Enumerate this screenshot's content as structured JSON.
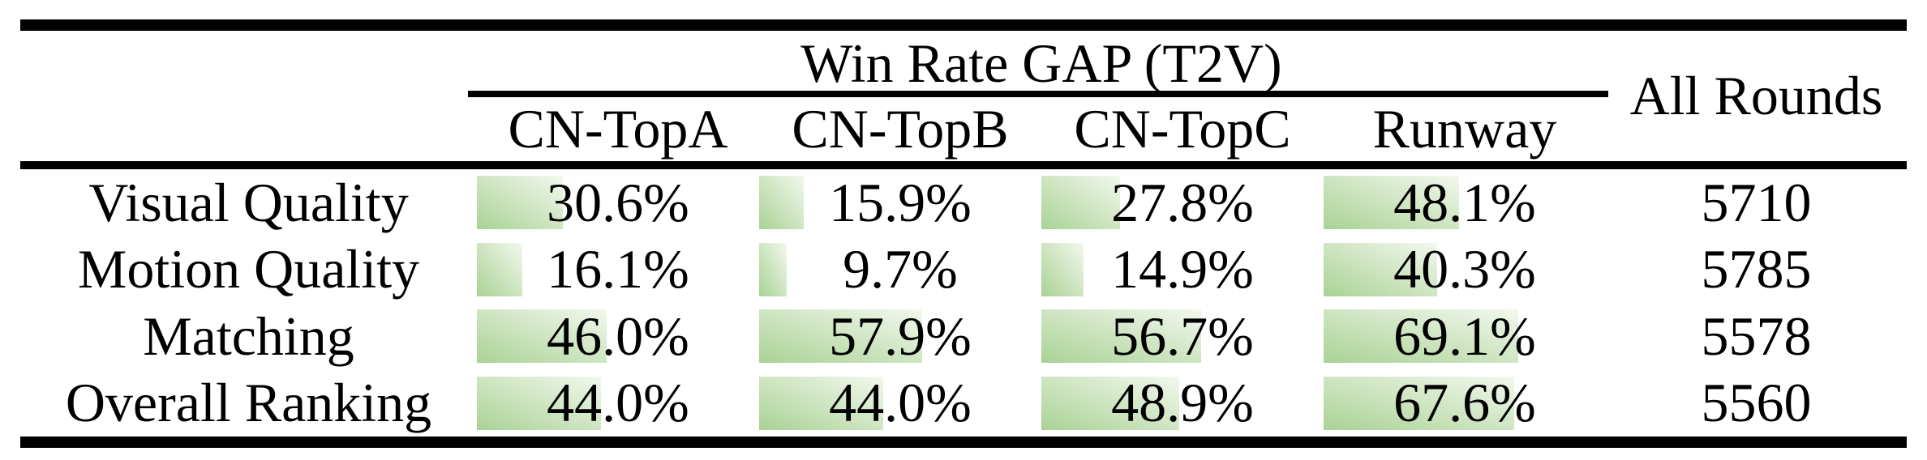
{
  "meta": {
    "background": "#ffffff",
    "text_color": "#000000",
    "rule_color": "#000000"
  },
  "table": {
    "group_header": "Win Rate GAP (T2V)",
    "all_rounds_header": "All Rounds",
    "bar_color_start": "#a9d295",
    "bar_color_end": "#f3f8ee",
    "columns": [
      "CN-TopA",
      "CN-TopB",
      "CN-TopC",
      "Runway"
    ],
    "rows": [
      {
        "label": "Visual Quality",
        "cells": [
          {
            "pct": 30.6,
            "display": "30.6%"
          },
          {
            "pct": 15.9,
            "display": "15.9%"
          },
          {
            "pct": 27.8,
            "display": "27.8%"
          },
          {
            "pct": 48.1,
            "display": "48.1%"
          }
        ],
        "all_rounds": "5710"
      },
      {
        "label": "Motion Quality",
        "cells": [
          {
            "pct": 16.1,
            "display": "16.1%"
          },
          {
            "pct": 9.7,
            "display": "9.7%"
          },
          {
            "pct": 14.9,
            "display": "14.9%"
          },
          {
            "pct": 40.3,
            "display": "40.3%"
          }
        ],
        "all_rounds": "5785"
      },
      {
        "label": "Matching",
        "cells": [
          {
            "pct": 46.0,
            "display": "46.0%"
          },
          {
            "pct": 57.9,
            "display": "57.9%"
          },
          {
            "pct": 56.7,
            "display": "56.7%"
          },
          {
            "pct": 69.1,
            "display": "69.1%"
          }
        ],
        "all_rounds": "5578"
      },
      {
        "label": "Overall Ranking",
        "cells": [
          {
            "pct": 44.0,
            "display": "44.0%"
          },
          {
            "pct": 44.0,
            "display": "44.0%"
          },
          {
            "pct": 48.9,
            "display": "48.9%"
          },
          {
            "pct": 67.6,
            "display": "67.6%"
          }
        ],
        "all_rounds": "5560"
      }
    ]
  },
  "chart_data": {
    "type": "table",
    "title": "Win Rate GAP (T2V)",
    "categories": [
      "Visual Quality",
      "Motion Quality",
      "Matching",
      "Overall Ranking"
    ],
    "series": [
      {
        "name": "CN-TopA",
        "values": [
          30.6,
          16.1,
          46.0,
          44.0
        ]
      },
      {
        "name": "CN-TopB",
        "values": [
          15.9,
          9.7,
          57.9,
          44.0
        ]
      },
      {
        "name": "CN-TopC",
        "values": [
          27.8,
          14.9,
          56.7,
          48.9
        ]
      },
      {
        "name": "Runway",
        "values": [
          48.1,
          40.3,
          69.1,
          67.6
        ]
      }
    ],
    "extra_column": {
      "name": "All Rounds",
      "values": [
        5710,
        5785,
        5578,
        5560
      ]
    },
    "unit": "%",
    "bars": "horizontal gradient data bars, length proportional to value"
  }
}
